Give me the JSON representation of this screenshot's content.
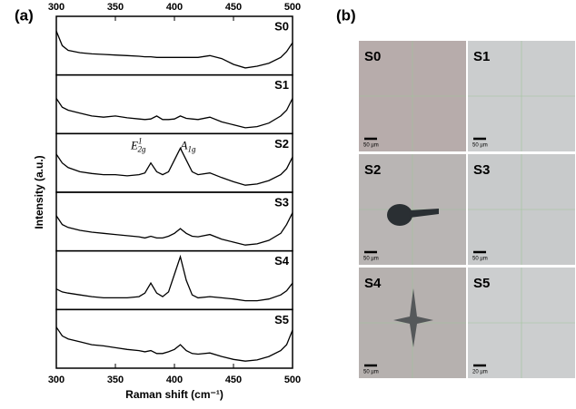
{
  "chart_data": {
    "type": "line",
    "panel_label": "(a)",
    "xlabel": "Raman shift (cm⁻¹)",
    "ylabel": "Intensity (a.u.)",
    "x": [
      300,
      305,
      310,
      320,
      330,
      340,
      350,
      360,
      370,
      375,
      380,
      385,
      390,
      395,
      400,
      405,
      410,
      415,
      420,
      430,
      440,
      450,
      460,
      470,
      480,
      490,
      495,
      500
    ],
    "xlim": [
      300,
      500
    ],
    "xticks": [
      300,
      350,
      400,
      450,
      500
    ],
    "ylim": [
      0,
      1
    ],
    "series": [
      {
        "name": "S0",
        "color": "#000000",
        "values": [
          0.75,
          0.5,
          0.42,
          0.38,
          0.36,
          0.35,
          0.34,
          0.33,
          0.32,
          0.31,
          0.31,
          0.3,
          0.3,
          0.3,
          0.3,
          0.3,
          0.3,
          0.3,
          0.3,
          0.33,
          0.28,
          0.18,
          0.12,
          0.15,
          0.2,
          0.3,
          0.4,
          0.55
        ]
      },
      {
        "name": "S1",
        "color": "#000000",
        "values": [
          0.6,
          0.45,
          0.4,
          0.35,
          0.3,
          0.28,
          0.3,
          0.27,
          0.25,
          0.24,
          0.25,
          0.3,
          0.24,
          0.24,
          0.25,
          0.3,
          0.26,
          0.25,
          0.24,
          0.28,
          0.2,
          0.15,
          0.1,
          0.12,
          0.18,
          0.3,
          0.4,
          0.6
        ]
      },
      {
        "name": "S2",
        "color": "#000000",
        "values": [
          0.65,
          0.5,
          0.42,
          0.35,
          0.32,
          0.3,
          0.3,
          0.28,
          0.3,
          0.33,
          0.5,
          0.35,
          0.3,
          0.35,
          0.55,
          0.75,
          0.55,
          0.35,
          0.3,
          0.33,
          0.25,
          0.18,
          0.12,
          0.14,
          0.2,
          0.3,
          0.4,
          0.6
        ]
      },
      {
        "name": "S3",
        "color": "#000000",
        "values": [
          0.6,
          0.45,
          0.4,
          0.35,
          0.32,
          0.3,
          0.28,
          0.26,
          0.24,
          0.22,
          0.25,
          0.22,
          0.22,
          0.25,
          0.3,
          0.38,
          0.3,
          0.25,
          0.24,
          0.28,
          0.2,
          0.15,
          0.1,
          0.12,
          0.18,
          0.3,
          0.45,
          0.65
        ]
      },
      {
        "name": "S4",
        "color": "#000000",
        "values": [
          0.35,
          0.3,
          0.28,
          0.25,
          0.22,
          0.2,
          0.2,
          0.2,
          0.22,
          0.28,
          0.45,
          0.28,
          0.22,
          0.3,
          0.6,
          0.9,
          0.5,
          0.25,
          0.2,
          0.22,
          0.2,
          0.18,
          0.15,
          0.15,
          0.18,
          0.25,
          0.32,
          0.45
        ]
      },
      {
        "name": "S5",
        "color": "#000000",
        "values": [
          0.7,
          0.55,
          0.5,
          0.45,
          0.4,
          0.38,
          0.35,
          0.32,
          0.3,
          0.28,
          0.3,
          0.25,
          0.25,
          0.28,
          0.32,
          0.4,
          0.3,
          0.25,
          0.24,
          0.26,
          0.2,
          0.15,
          0.12,
          0.14,
          0.2,
          0.3,
          0.4,
          0.65
        ]
      }
    ],
    "annotations": [
      {
        "text": "E",
        "sub": "2g",
        "sup": "1",
        "x": 380
      },
      {
        "text": "A",
        "sub": "1g",
        "x": 405
      }
    ]
  },
  "images": {
    "panel_label": "(b)",
    "tiles": [
      {
        "label": "S0",
        "scale": "50 µm"
      },
      {
        "label": "S1",
        "scale": "50 µm"
      },
      {
        "label": "S2",
        "scale": "50 µm"
      },
      {
        "label": "S3",
        "scale": "50 µm"
      },
      {
        "label": "S4",
        "scale": "50 µm"
      },
      {
        "label": "S5",
        "scale": "20 µm"
      }
    ]
  }
}
